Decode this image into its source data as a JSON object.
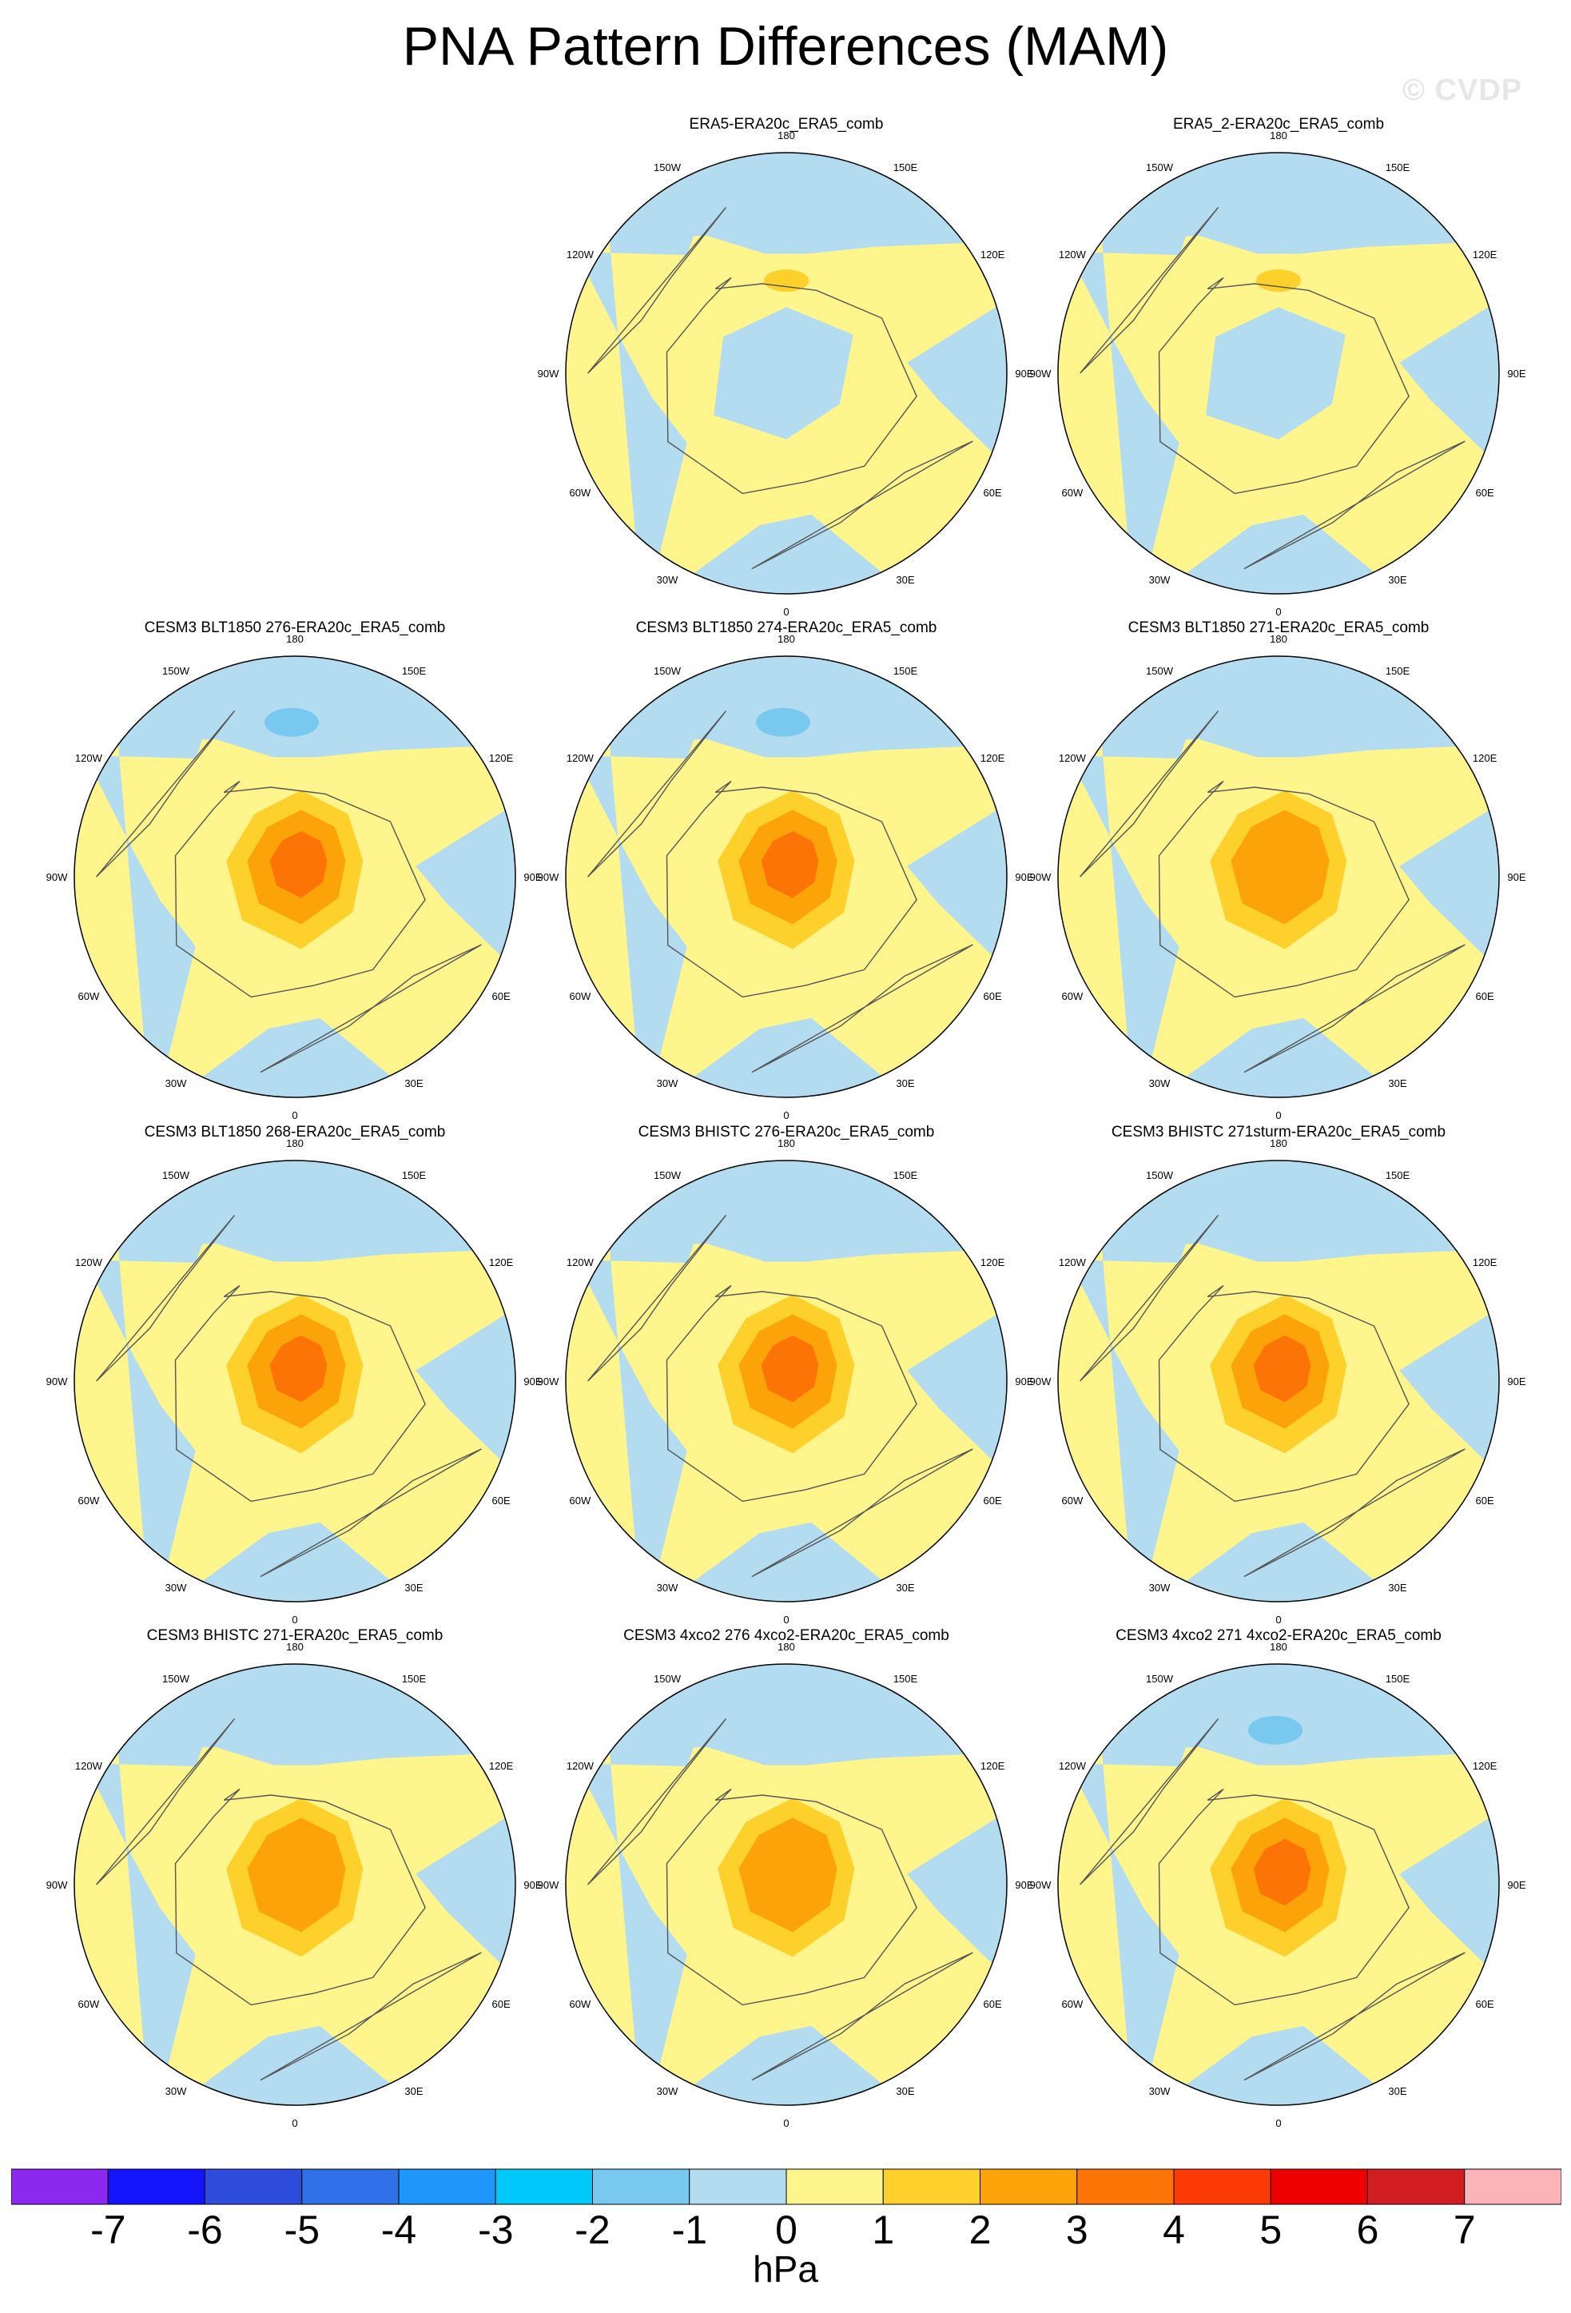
{
  "title": "PNA Pattern Differences (MAM)",
  "watermark": "© CVDP",
  "units": "hPa",
  "colors": {
    "ocean_or_neg": "#b4dcf0",
    "zero_to_one": "#fef58d",
    "one_to_two": "#fdd02b",
    "two_to_three": "#fca30a",
    "three_to_four": "#fc7405",
    "coast": "#555555"
  },
  "lon_labels": [
    "180",
    "150E",
    "120E",
    "90E",
    "60E",
    "30E",
    "0",
    "30W",
    "60W",
    "90W",
    "120W",
    "150W"
  ],
  "panels": [
    {
      "title": "ERA5-ERA20c_ERA5_comb",
      "row": 0,
      "col": 1,
      "center": "low",
      "peak": 1
    },
    {
      "title": "ERA5_2-ERA20c_ERA5_comb",
      "row": 0,
      "col": 2,
      "center": "low",
      "peak": 1
    },
    {
      "title": "CESM3 BLT1850 276-ERA20c_ERA5_comb",
      "row": 1,
      "col": 0,
      "center": "high",
      "peak": 4
    },
    {
      "title": "CESM3 BLT1850 274-ERA20c_ERA5_comb",
      "row": 1,
      "col": 1,
      "center": "high",
      "peak": 4
    },
    {
      "title": "CESM3 BLT1850 271-ERA20c_ERA5_comb",
      "row": 1,
      "col": 2,
      "center": "high",
      "peak": 3
    },
    {
      "title": "CESM3 BLT1850 268-ERA20c_ERA5_comb",
      "row": 2,
      "col": 0,
      "center": "high",
      "peak": 4
    },
    {
      "title": "CESM3 BHISTC 276-ERA20c_ERA5_comb",
      "row": 2,
      "col": 1,
      "center": "high",
      "peak": 4
    },
    {
      "title": "CESM3 BHISTC 271sturm-ERA20c_ERA5_comb",
      "row": 2,
      "col": 2,
      "center": "high",
      "peak": 4
    },
    {
      "title": "CESM3 BHISTC 271-ERA20c_ERA5_comb",
      "row": 3,
      "col": 0,
      "center": "high",
      "peak": 3
    },
    {
      "title": "CESM3 4xco2 276 4xco2-ERA20c_ERA5_comb",
      "row": 3,
      "col": 1,
      "center": "high",
      "peak": 3
    },
    {
      "title": "CESM3 4xco2 271 4xco2-ERA20c_ERA5_comb",
      "row": 3,
      "col": 2,
      "center": "high",
      "peak": 4
    }
  ],
  "colorbar": {
    "colors": [
      "#8c28f0",
      "#1414fa",
      "#2d4cdc",
      "#3070e8",
      "#1e96fa",
      "#00c8fa",
      "#78c8f0",
      "#b4dcf0",
      "#fef58d",
      "#fdd02b",
      "#fca30a",
      "#fc7405",
      "#fc3a05",
      "#ee0000",
      "#d21e23",
      "#fbb4b8"
    ],
    "labels": [
      "-7",
      "-6",
      "-5",
      "-4",
      "-3",
      "-2",
      "-1",
      "0",
      "1",
      "2",
      "3",
      "4",
      "5",
      "6",
      "7"
    ]
  }
}
